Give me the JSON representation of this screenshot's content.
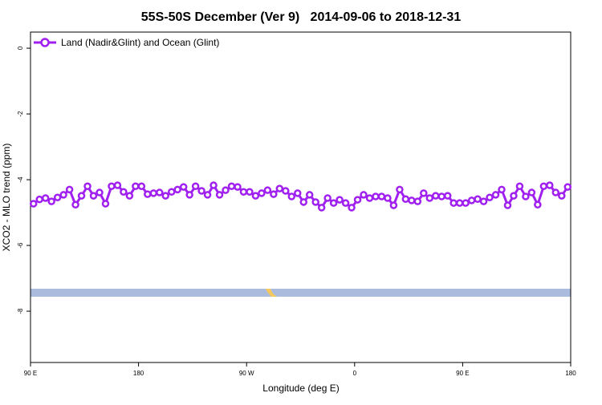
{
  "chart_data": {
    "type": "line",
    "title": "55S-50S December (Ver 9)   2014-09-06 to 2018-12-31",
    "x_label": "Longitude (deg E)",
    "y_label": "XCO2 - MLO trend (ppm)",
    "xlim": [
      90,
      540
    ],
    "ylim": [
      -9.56,
      0.49
    ],
    "xticks": [
      {
        "value": 90,
        "label": "90 E"
      },
      {
        "value": 180,
        "label": "180"
      },
      {
        "value": 270,
        "label": "90 W"
      },
      {
        "value": 360,
        "label": "0"
      },
      {
        "value": 450,
        "label": "90 E"
      },
      {
        "value": 540,
        "label": "180"
      }
    ],
    "yticks": [
      0,
      -2,
      -4,
      -6,
      -8
    ],
    "legend_position": "top-left",
    "x": [
      92.5,
      97.5,
      102.5,
      107.5,
      112.5,
      117.5,
      122.5,
      127.5,
      132.5,
      137.5,
      142.5,
      147.5,
      152.5,
      157.5,
      162.5,
      167.5,
      172.5,
      177.5,
      182.5,
      187.5,
      192.5,
      197.5,
      202.5,
      207.5,
      212.5,
      217.5,
      222.5,
      227.5,
      232.5,
      237.5,
      242.5,
      247.5,
      252.5,
      257.5,
      262.5,
      267.5,
      272.5,
      277.5,
      282.5,
      287.5,
      292.5,
      297.5,
      302.5,
      307.5,
      312.5,
      317.5,
      322.5,
      327.5,
      332.5,
      337.5,
      342.5,
      347.5,
      352.5,
      357.5,
      362.5,
      367.5,
      372.5,
      377.5,
      382.5,
      387.5,
      392.5,
      397.5,
      402.5,
      407.5,
      412.5,
      417.5,
      422.5,
      427.5,
      432.5,
      437.5,
      442.5,
      447.5,
      452.5,
      457.5,
      462.5,
      467.5,
      472.5,
      477.5,
      482.5,
      487.5,
      492.5,
      497.5,
      502.5,
      507.5,
      512.5,
      517.5,
      522.5,
      527.5,
      532.5,
      537.5
    ],
    "series": [
      {
        "name": "Land (Nadir&Glint) and Ocean (Glint)",
        "color": "#a020f0",
        "values": [
          -4.73,
          -4.6,
          -4.56,
          -4.66,
          -4.54,
          -4.46,
          -4.3,
          -4.76,
          -4.49,
          -4.2,
          -4.49,
          -4.39,
          -4.73,
          -4.2,
          -4.17,
          -4.37,
          -4.49,
          -4.2,
          -4.2,
          -4.44,
          -4.41,
          -4.39,
          -4.49,
          -4.37,
          -4.3,
          -4.22,
          -4.46,
          -4.2,
          -4.34,
          -4.46,
          -4.17,
          -4.46,
          -4.32,
          -4.2,
          -4.22,
          -4.37,
          -4.37,
          -4.49,
          -4.41,
          -4.32,
          -4.44,
          -4.27,
          -4.34,
          -4.51,
          -4.41,
          -4.68,
          -4.46,
          -4.68,
          -4.85,
          -4.56,
          -4.71,
          -4.61,
          -4.71,
          -4.85,
          -4.61,
          -4.46,
          -4.56,
          -4.51,
          -4.51,
          -4.56,
          -4.78,
          -4.3,
          -4.59,
          -4.63,
          -4.66,
          -4.41,
          -4.56,
          -4.49,
          -4.51,
          -4.49,
          -4.71,
          -4.71,
          -4.71,
          -4.63,
          -4.59,
          -4.66,
          -4.54,
          -4.46,
          -4.3,
          -4.78,
          -4.49,
          -4.2,
          -4.51,
          -4.39,
          -4.76,
          -4.2,
          -4.17,
          -4.39,
          -4.49,
          -4.22
        ]
      }
    ]
  }
}
